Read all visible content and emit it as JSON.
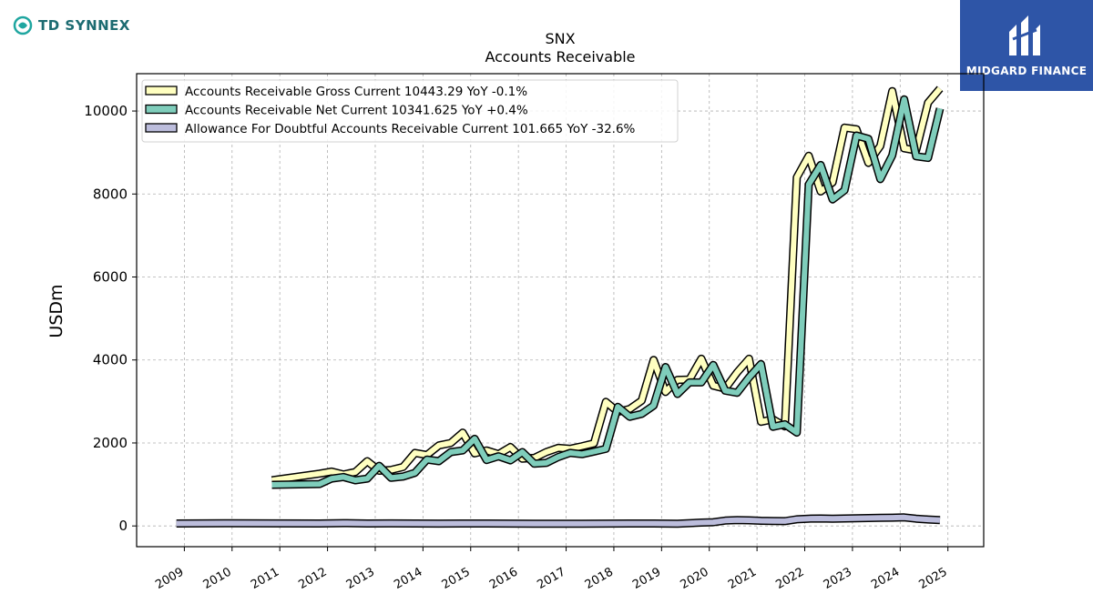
{
  "branding": {
    "left_logo_text": "TD SYNNEX",
    "right_logo_text": "MIDGARD FINANCE"
  },
  "colors": {
    "gross": "#ffffc0",
    "net": "#7fcdbb",
    "allowance": "#bcbddc",
    "outline": "#000000",
    "grid": "#b0b0b0",
    "right_logo_bg": "#2e55a7",
    "left_logo": "#1c6b71"
  },
  "chart_data": {
    "type": "line",
    "title": "SNX",
    "subtitle": "Accounts Receivable",
    "xlabel": "",
    "ylabel": "USDm",
    "ylim": [
      -500,
      10900
    ],
    "xlim": [
      2008.0,
      2025.75
    ],
    "yticks": [
      0,
      2000,
      4000,
      6000,
      8000,
      10000
    ],
    "xticks": [
      "2009",
      "2010",
      "2011",
      "2012",
      "2013",
      "2014",
      "2015",
      "2016",
      "2017",
      "2018",
      "2019",
      "2020",
      "2021",
      "2022",
      "2023",
      "2024",
      "2025"
    ],
    "grid": true,
    "legend_position": "top-left",
    "series": [
      {
        "name": "Accounts Receivable Gross Current",
        "legend_label": "Accounts Receivable Gross Current  10443.29 YoY -0.1%",
        "x": [
          "2010-11",
          "2011-11",
          "2012-02",
          "2012-05",
          "2012-08",
          "2012-11",
          "2013-02",
          "2013-05",
          "2013-08",
          "2013-11",
          "2014-02",
          "2014-05",
          "2014-08",
          "2014-11",
          "2015-02",
          "2015-05",
          "2015-08",
          "2015-11",
          "2016-02",
          "2016-05",
          "2016-08",
          "2016-11",
          "2017-02",
          "2017-05",
          "2017-08",
          "2017-11",
          "2018-02",
          "2018-05",
          "2018-08",
          "2018-11",
          "2019-02",
          "2019-05",
          "2019-08",
          "2019-11",
          "2020-02",
          "2020-05",
          "2020-08",
          "2020-11",
          "2021-02",
          "2021-05",
          "2021-08",
          "2021-11",
          "2022-02",
          "2022-05",
          "2022-08",
          "2022-11",
          "2023-02",
          "2023-05",
          "2023-08",
          "2023-11",
          "2024-02",
          "2024-05",
          "2024-08",
          "2024-11"
        ],
        "values": [
          1100,
          1260,
          1310,
          1240,
          1300,
          1560,
          1330,
          1350,
          1420,
          1760,
          1710,
          1940,
          2000,
          2250,
          1750,
          1820,
          1730,
          1900,
          1620,
          1640,
          1780,
          1880,
          1860,
          1920,
          1990,
          2990,
          2750,
          2820,
          3020,
          4000,
          3230,
          3520,
          3530,
          4030,
          3380,
          3310,
          3700,
          4030,
          2510,
          2570,
          2400,
          8400,
          8920,
          8060,
          8280,
          9600,
          9560,
          8750,
          9160,
          10480,
          9100,
          9050,
          10200,
          10540
        ]
      },
      {
        "name": "Accounts Receivable Net Current",
        "legend_label": "Accounts Receivable Net Current  10341.625 YoY +0.4%",
        "x": [
          "2010-11",
          "2011-11",
          "2012-02",
          "2012-05",
          "2012-08",
          "2012-11",
          "2013-02",
          "2013-05",
          "2013-08",
          "2013-11",
          "2014-02",
          "2014-05",
          "2014-08",
          "2014-11",
          "2015-02",
          "2015-05",
          "2015-08",
          "2015-11",
          "2016-02",
          "2016-05",
          "2016-08",
          "2016-11",
          "2017-02",
          "2017-05",
          "2017-08",
          "2017-11",
          "2018-02",
          "2018-05",
          "2018-08",
          "2018-11",
          "2019-02",
          "2019-05",
          "2019-08",
          "2019-11",
          "2020-02",
          "2020-05",
          "2020-08",
          "2020-11",
          "2021-02",
          "2021-05",
          "2021-08",
          "2021-11",
          "2022-02",
          "2022-05",
          "2022-08",
          "2022-11",
          "2023-02",
          "2023-05",
          "2023-08",
          "2023-11",
          "2024-02",
          "2024-05",
          "2024-08",
          "2024-11"
        ],
        "values": [
          990,
          1010,
          1140,
          1180,
          1100,
          1140,
          1450,
          1160,
          1190,
          1280,
          1600,
          1560,
          1780,
          1820,
          2100,
          1590,
          1680,
          1580,
          1780,
          1500,
          1520,
          1660,
          1760,
          1730,
          1790,
          1860,
          2870,
          2630,
          2700,
          2900,
          3830,
          3180,
          3460,
          3460,
          3880,
          3260,
          3210,
          3580,
          3900,
          2390,
          2450,
          2250,
          8230,
          8700,
          7870,
          8090,
          9410,
          9330,
          8360,
          8930,
          10280,
          8910,
          8870,
          10060
        ],
        "note": "see values aligned to x"
      },
      {
        "name": "Allowance For Doubtful Accounts Receivable Current",
        "legend_label": "Allowance For Doubtful Accounts Receivable Current  101.665 YoY -32.6%",
        "x": [
          "2008-11",
          "2009-11",
          "2010-11",
          "2011-11",
          "2012-05",
          "2012-11",
          "2013-05",
          "2013-11",
          "2014-05",
          "2014-11",
          "2015-05",
          "2015-11",
          "2016-05",
          "2016-11",
          "2017-05",
          "2017-11",
          "2018-05",
          "2018-11",
          "2019-05",
          "2019-11",
          "2020-02",
          "2020-05",
          "2020-08",
          "2020-11",
          "2021-02",
          "2021-05",
          "2021-08",
          "2021-11",
          "2022-02",
          "2022-05",
          "2022-08",
          "2022-11",
          "2023-02",
          "2023-05",
          "2023-08",
          "2023-11",
          "2024-02",
          "2024-05",
          "2024-08",
          "2024-11"
        ],
        "values": [
          60,
          65,
          62,
          60,
          68,
          60,
          62,
          58,
          57,
          58,
          58,
          56,
          55,
          55,
          55,
          57,
          60,
          58,
          52,
          80,
          90,
          130,
          140,
          135,
          125,
          120,
          115,
          160,
          175,
          180,
          175,
          180,
          185,
          190,
          195,
          200,
          205,
          175,
          155,
          140
        ]
      }
    ]
  }
}
